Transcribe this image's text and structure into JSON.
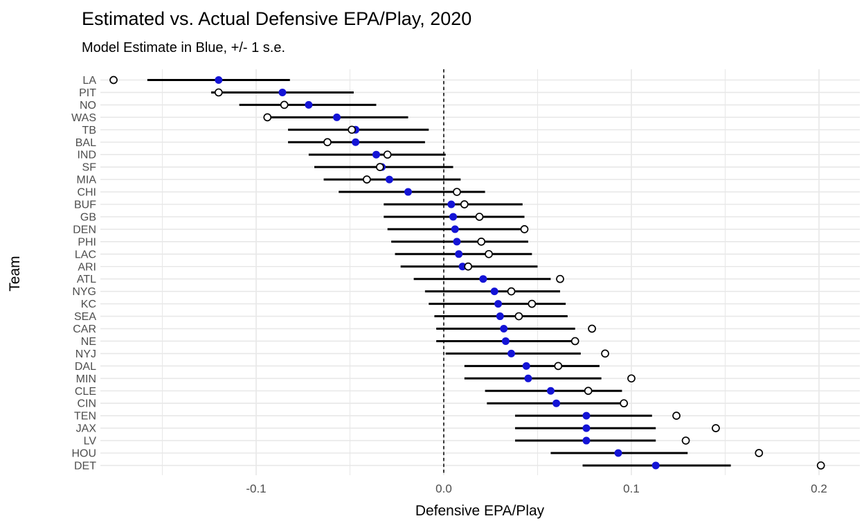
{
  "page": {
    "background": "#ffffff"
  },
  "chart_data": {
    "type": "scatter",
    "subtype": "dot-errorbar (pointrange with actual-value open circles)",
    "title": "Estimated vs. Actual Defensive EPA/Play, 2020",
    "subtitle": "Model Estimate in Blue, +/- 1 s.e.",
    "xlabel": "Defensive EPA/Play",
    "ylabel": "Team",
    "xlim": [
      -0.183,
      0.222
    ],
    "x_ticks": [
      -0.1,
      0.0,
      0.1,
      0.2
    ],
    "x_tick_labels": [
      "-0.1",
      "0.0",
      "0.1",
      "0.2"
    ],
    "x_minor_gridlines": [
      -0.15,
      -0.05,
      0.05,
      0.15
    ],
    "zero_reference_line": 0.0,
    "grid": true,
    "legend_position": "none",
    "colors": {
      "estimate_dot": "#1414d6",
      "actual_circle_fill": "#ffffff",
      "actual_circle_stroke": "#000000",
      "errorbar": "#000000",
      "gridline": "#e8e8e8",
      "zero_line": "#000000",
      "tick_text": "#4d4d4d",
      "title_text": "#000000"
    },
    "series_legend": [
      {
        "name": "Model Estimate",
        "mark": "filled blue dot with +/- 1 s.e. bar"
      },
      {
        "name": "Actual",
        "mark": "open circle"
      }
    ],
    "teams": [
      {
        "team": "LA",
        "estimate": -0.12,
        "se_lo": -0.158,
        "se_hi": -0.082,
        "actual": -0.176
      },
      {
        "team": "PIT",
        "estimate": -0.086,
        "se_lo": -0.124,
        "se_hi": -0.048,
        "actual": -0.12
      },
      {
        "team": "NO",
        "estimate": -0.072,
        "se_lo": -0.109,
        "se_hi": -0.036,
        "actual": -0.085
      },
      {
        "team": "WAS",
        "estimate": -0.057,
        "se_lo": -0.093,
        "se_hi": -0.019,
        "actual": -0.094
      },
      {
        "team": "TB",
        "estimate": -0.047,
        "se_lo": -0.083,
        "se_hi": -0.008,
        "actual": -0.049
      },
      {
        "team": "BAL",
        "estimate": -0.047,
        "se_lo": -0.083,
        "se_hi": -0.01,
        "actual": -0.062
      },
      {
        "team": "IND",
        "estimate": -0.036,
        "se_lo": -0.072,
        "se_hi": 0.001,
        "actual": -0.03
      },
      {
        "team": "SF",
        "estimate": -0.033,
        "se_lo": -0.069,
        "se_hi": 0.005,
        "actual": -0.034
      },
      {
        "team": "MIA",
        "estimate": -0.029,
        "se_lo": -0.064,
        "se_hi": 0.009,
        "actual": -0.041
      },
      {
        "team": "CHI",
        "estimate": -0.019,
        "se_lo": -0.056,
        "se_hi": 0.022,
        "actual": 0.007
      },
      {
        "team": "BUF",
        "estimate": 0.004,
        "se_lo": -0.032,
        "se_hi": 0.042,
        "actual": 0.011
      },
      {
        "team": "GB",
        "estimate": 0.005,
        "se_lo": -0.032,
        "se_hi": 0.043,
        "actual": 0.019
      },
      {
        "team": "DEN",
        "estimate": 0.006,
        "se_lo": -0.03,
        "se_hi": 0.042,
        "actual": 0.043
      },
      {
        "team": "PHI",
        "estimate": 0.007,
        "se_lo": -0.028,
        "se_hi": 0.045,
        "actual": 0.02
      },
      {
        "team": "LAC",
        "estimate": 0.008,
        "se_lo": -0.026,
        "se_hi": 0.047,
        "actual": 0.024
      },
      {
        "team": "ARI",
        "estimate": 0.01,
        "se_lo": -0.023,
        "se_hi": 0.05,
        "actual": 0.013
      },
      {
        "team": "ATL",
        "estimate": 0.021,
        "se_lo": -0.016,
        "se_hi": 0.057,
        "actual": 0.062
      },
      {
        "team": "NYG",
        "estimate": 0.027,
        "se_lo": -0.01,
        "se_hi": 0.062,
        "actual": 0.036
      },
      {
        "team": "KC",
        "estimate": 0.029,
        "se_lo": -0.008,
        "se_hi": 0.065,
        "actual": 0.047
      },
      {
        "team": "SEA",
        "estimate": 0.03,
        "se_lo": -0.005,
        "se_hi": 0.066,
        "actual": 0.04
      },
      {
        "team": "CAR",
        "estimate": 0.032,
        "se_lo": -0.004,
        "se_hi": 0.07,
        "actual": 0.079
      },
      {
        "team": "NE",
        "estimate": 0.033,
        "se_lo": -0.004,
        "se_hi": 0.071,
        "actual": 0.07
      },
      {
        "team": "NYJ",
        "estimate": 0.036,
        "se_lo": 0.001,
        "se_hi": 0.073,
        "actual": 0.086
      },
      {
        "team": "DAL",
        "estimate": 0.044,
        "se_lo": 0.011,
        "se_hi": 0.083,
        "actual": 0.061
      },
      {
        "team": "MIN",
        "estimate": 0.045,
        "se_lo": 0.011,
        "se_hi": 0.084,
        "actual": 0.1
      },
      {
        "team": "CLE",
        "estimate": 0.057,
        "se_lo": 0.022,
        "se_hi": 0.095,
        "actual": 0.077
      },
      {
        "team": "CIN",
        "estimate": 0.06,
        "se_lo": 0.023,
        "se_hi": 0.095,
        "actual": 0.096
      },
      {
        "team": "TEN",
        "estimate": 0.076,
        "se_lo": 0.038,
        "se_hi": 0.111,
        "actual": 0.124
      },
      {
        "team": "JAX",
        "estimate": 0.076,
        "se_lo": 0.038,
        "se_hi": 0.113,
        "actual": 0.145
      },
      {
        "team": "LV",
        "estimate": 0.076,
        "se_lo": 0.038,
        "se_hi": 0.113,
        "actual": 0.129
      },
      {
        "team": "HOU",
        "estimate": 0.093,
        "se_lo": 0.057,
        "se_hi": 0.13,
        "actual": 0.168
      },
      {
        "team": "DET",
        "estimate": 0.113,
        "se_lo": 0.074,
        "se_hi": 0.153,
        "actual": 0.201
      }
    ]
  }
}
